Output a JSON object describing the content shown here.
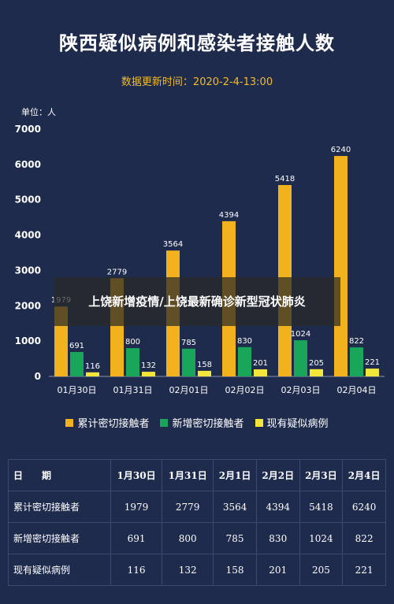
{
  "title": "陕西疑似病例和感染者接触人数",
  "update_label": "数据更新时间：",
  "update_time": "2020-2-4-13:00",
  "unit_label": "单位：人",
  "overlay_text": "上饶新增疫情/上饶最新确诊新型冠状肺炎",
  "colors": {
    "background": "#1f2b4d",
    "series1": "#f1b21e",
    "series2": "#1aa65a",
    "series3": "#f3e63b",
    "accent": "#f1bc2a"
  },
  "chart_data": {
    "type": "bar",
    "title": "陕西疑似病例和感染者接触人数",
    "categories": [
      "01月30日",
      "01月31日",
      "02月01日",
      "02月02日",
      "02月03日",
      "02月04日"
    ],
    "series": [
      {
        "name": "累计密切接触者",
        "values": [
          1979,
          2779,
          3564,
          4394,
          5418,
          6240
        ]
      },
      {
        "name": "新增密切接触者",
        "values": [
          691,
          800,
          785,
          830,
          1024,
          822
        ]
      },
      {
        "name": "现有疑似病例",
        "values": [
          116,
          132,
          158,
          201,
          205,
          221
        ]
      }
    ],
    "ylim": [
      0,
      7000
    ],
    "yticks": [
      0,
      1000,
      2000,
      3000,
      4000,
      5000,
      6000,
      7000
    ],
    "grid": false,
    "legend_position": "bottom"
  },
  "table": {
    "header_label": "日　　期",
    "columns": [
      "1月30日",
      "1月31日",
      "2月1日",
      "2月2日",
      "2月3日",
      "2月4日"
    ],
    "rows": [
      {
        "label": "累计密切接触者",
        "values": [
          "1979",
          "2779",
          "3564",
          "4394",
          "5418",
          "6240"
        ]
      },
      {
        "label": "新增密切接触者",
        "values": [
          "691",
          "800",
          "785",
          "830",
          "1024",
          "822"
        ]
      },
      {
        "label": "现有疑似病例",
        "values": [
          "116",
          "132",
          "158",
          "201",
          "205",
          "221"
        ]
      }
    ]
  }
}
